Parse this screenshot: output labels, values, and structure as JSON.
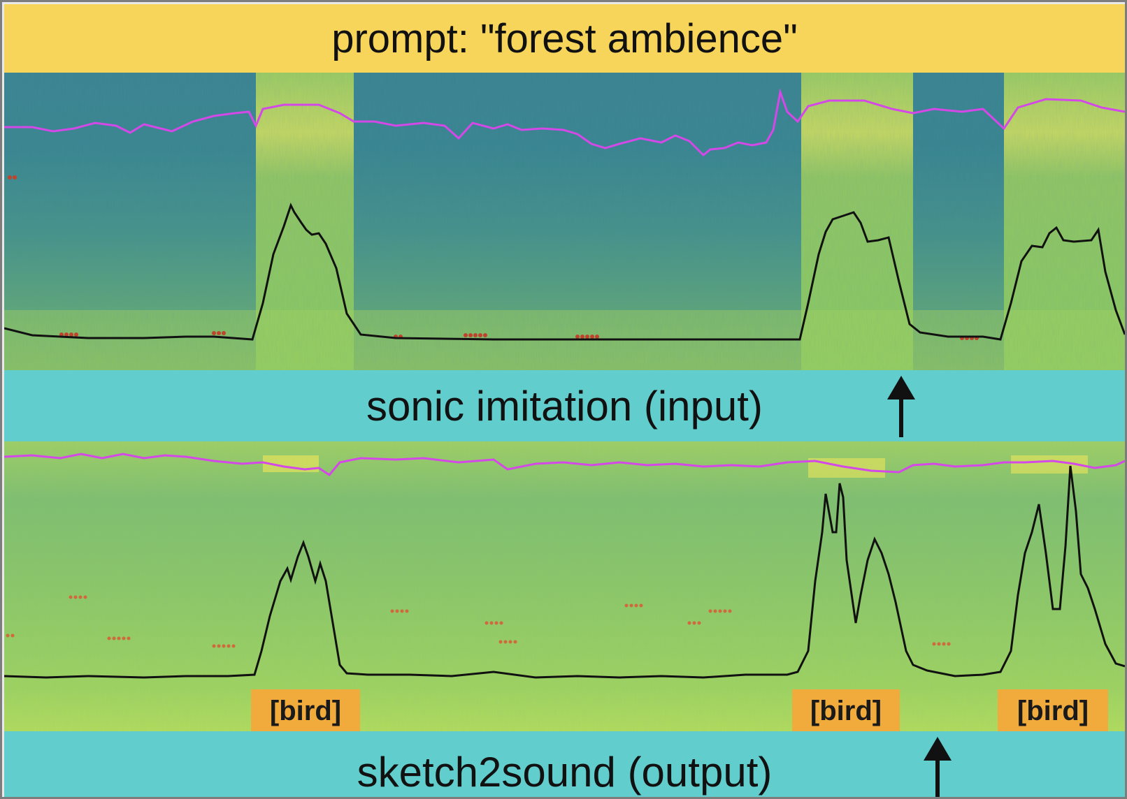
{
  "header": {
    "prompt_label": "prompt: \"forest ambience\""
  },
  "input_section": {
    "label": "sonic imitation (input)"
  },
  "output_section": {
    "label": "sketch2sound (output)"
  },
  "event_labels": [
    "[bird]",
    "[bird]",
    "[bird]"
  ],
  "colors": {
    "prompt_banner": "#f7d55a",
    "section_banner": "#62cdcd",
    "badge": "#f0ab3c",
    "loudness_curve": "#111111",
    "pitch_curve": "#d448e8",
    "spectrogram_dark": "#2f6f8f",
    "spectrogram_bright": "#f2e85a"
  },
  "icons": {
    "time_marker": "up-arrow-icon"
  }
}
